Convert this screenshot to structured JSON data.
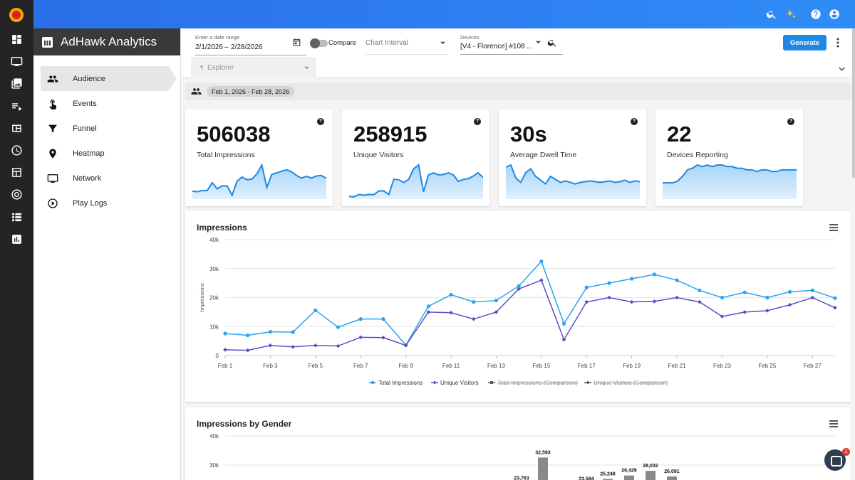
{
  "app": {
    "title": "AdHawk Analytics"
  },
  "nav": [
    {
      "label": "Audience",
      "icon": "people-icon",
      "active": true
    },
    {
      "label": "Events",
      "icon": "touch-icon"
    },
    {
      "label": "Funnel",
      "icon": "funnel-icon"
    },
    {
      "label": "Heatmap",
      "icon": "location-pin-icon"
    },
    {
      "label": "Network",
      "icon": "monitor-icon"
    },
    {
      "label": "Play Logs",
      "icon": "play-circle-icon"
    }
  ],
  "filters": {
    "date_label": "Enter a date range",
    "date_start": "2/1/2026",
    "date_sep": "–",
    "date_end": "2/28/2026",
    "compare_label": "Compare",
    "interval_placeholder": "Chart Interval",
    "devices_label": "Devices",
    "devices_value": "[V4 - Florence] #108 ...",
    "explorer_placeholder": "Explorer",
    "generate_label": "Generate"
  },
  "date_chip": "Feb 1, 2026 - Feb 28, 2026",
  "cards": [
    {
      "value": "506038",
      "label": "Total Impressions",
      "spark": [
        7600,
        7000,
        8200,
        8100,
        15600,
        9800,
        12600,
        12600,
        3600,
        17000,
        21000,
        18500,
        19000,
        24000,
        32500,
        11000,
        23500,
        25000,
        26500,
        28000,
        26000,
        22500,
        20000,
        21800,
        20000,
        22000,
        22500,
        19800
      ]
    },
    {
      "value": "258915",
      "label": "Unique Visitors",
      "spark": [
        2000,
        1800,
        3500,
        3000,
        3500,
        3300,
        6300,
        6200,
        3500,
        15000,
        14800,
        12600,
        15000,
        23000,
        26000,
        5500,
        18500,
        20000,
        18500,
        18700,
        20000,
        18500,
        13500,
        15000,
        15500,
        17500,
        20000,
        16500
      ]
    },
    {
      "value": "30s",
      "label": "Average Dwell Time",
      "spark": [
        42,
        45,
        28,
        22,
        35,
        40,
        30,
        25,
        20,
        30,
        26,
        22,
        24,
        22,
        20,
        22,
        23,
        24,
        23,
        22,
        23,
        24,
        22,
        23,
        25,
        22,
        24,
        23
      ]
    },
    {
      "value": "22",
      "label": "Devices Reporting",
      "spark": [
        10,
        10,
        10,
        11,
        14,
        18,
        19,
        21,
        20,
        21,
        20,
        21,
        21,
        20,
        20,
        19,
        19,
        18,
        18,
        17,
        18,
        18,
        17,
        17,
        18,
        18,
        18,
        18
      ]
    }
  ],
  "chart_data": [
    {
      "type": "line",
      "title": "Impressions",
      "ylabel": "Impressions",
      "xlabel": "",
      "ylim": [
        0,
        40000
      ],
      "yticks": [
        "0",
        "10k",
        "20k",
        "30k",
        "40k"
      ],
      "x": [
        "Feb 1",
        "Feb 2",
        "Feb 3",
        "Feb 4",
        "Feb 5",
        "Feb 6",
        "Feb 7",
        "Feb 8",
        "Feb 9",
        "Feb 10",
        "Feb 11",
        "Feb 12",
        "Feb 13",
        "Feb 14",
        "Feb 15",
        "Feb 16",
        "Feb 17",
        "Feb 18",
        "Feb 19",
        "Feb 20",
        "Feb 21",
        "Feb 22",
        "Feb 23",
        "Feb 24",
        "Feb 25",
        "Feb 26",
        "Feb 27",
        "Feb 28"
      ],
      "xticks": [
        "Feb 1",
        "Feb 3",
        "Feb 5",
        "Feb 7",
        "Feb 9",
        "Feb 11",
        "Feb 13",
        "Feb 15",
        "Feb 17",
        "Feb 19",
        "Feb 21",
        "Feb 23",
        "Feb 25",
        "Feb 27"
      ],
      "series": [
        {
          "name": "Total Impressions",
          "color": "#29a3f0",
          "values": [
            7600,
            7000,
            8200,
            8100,
            15600,
            9800,
            12600,
            12600,
            3600,
            17000,
            21000,
            18500,
            19000,
            24000,
            32500,
            11000,
            23500,
            25000,
            26500,
            28000,
            26000,
            22500,
            20000,
            21800,
            20000,
            22000,
            22500,
            19800
          ]
        },
        {
          "name": "Unique Visitors",
          "color": "#5e4bc4",
          "values": [
            2000,
            1800,
            3500,
            3000,
            3500,
            3300,
            6300,
            6200,
            3500,
            15000,
            14800,
            12600,
            15000,
            23000,
            26000,
            5500,
            18500,
            20000,
            18500,
            18700,
            20000,
            18500,
            13500,
            15000,
            15500,
            17500,
            20000,
            16500
          ]
        }
      ],
      "legend": [
        "Total Impressions",
        "Unique Visitors",
        "Total Impressions (Comparison)",
        "Unique Visitors (Comparison)"
      ],
      "legend_placement": "bottom"
    },
    {
      "type": "bar",
      "title": "Impressions by Gender",
      "ylim": [
        0,
        40000
      ],
      "yticks": [
        "30k",
        "40k"
      ],
      "data_labels": [
        "23,763",
        "32,593",
        "23,584",
        "25,248",
        "26,429",
        "28,032",
        "26,091"
      ],
      "values": [
        23763,
        32593,
        23584,
        25248,
        26429,
        28032,
        26091
      ],
      "color": "#8a8a8a"
    }
  ],
  "chat_badge": "1"
}
